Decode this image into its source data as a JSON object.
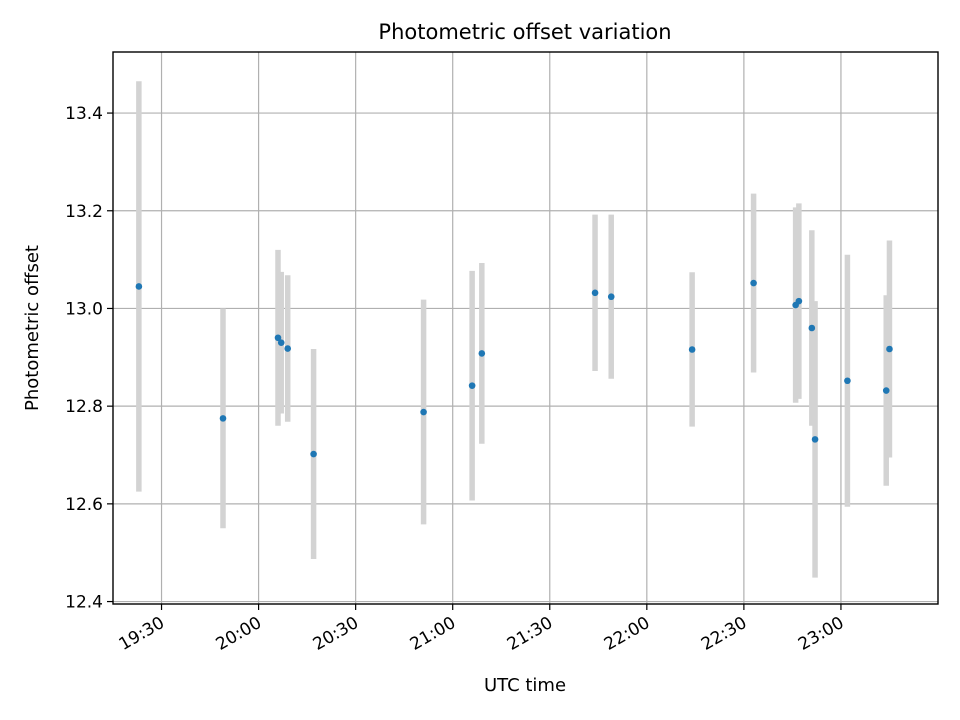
{
  "chart_data": {
    "type": "scatter",
    "title": "Photometric offset variation",
    "xlabel": "UTC time",
    "ylabel": "Photometric offset",
    "x_is_time": true,
    "xlim": [
      "19:15",
      "23:30"
    ],
    "ylim": [
      12.395,
      13.525
    ],
    "x_ticks": [
      "19:30",
      "20:00",
      "20:30",
      "21:00",
      "21:30",
      "22:00",
      "22:30",
      "23:00"
    ],
    "y_ticks": [
      12.4,
      12.6,
      12.8,
      13.0,
      13.2,
      13.4
    ],
    "y_tick_labels": [
      "12.4",
      "12.6",
      "12.8",
      "13.0",
      "13.2",
      "13.4"
    ],
    "grid": true,
    "marker_color": "#1f77b4",
    "errorbar_color": "#d3d3d3",
    "series": [
      {
        "points": [
          {
            "x": "19:23",
            "y": 13.045,
            "err": 0.42
          },
          {
            "x": "19:49",
            "y": 12.775,
            "err": 0.225
          },
          {
            "x": "20:06",
            "y": 12.94,
            "err": 0.18
          },
          {
            "x": "20:07",
            "y": 12.93,
            "err": 0.145
          },
          {
            "x": "20:09",
            "y": 12.918,
            "err": 0.15
          },
          {
            "x": "20:17",
            "y": 12.702,
            "err": 0.215
          },
          {
            "x": "20:51",
            "y": 12.788,
            "err": 0.23
          },
          {
            "x": "21:06",
            "y": 12.842,
            "err": 0.235
          },
          {
            "x": "21:09",
            "y": 12.908,
            "err": 0.185
          },
          {
            "x": "21:44",
            "y": 13.032,
            "err": 0.16
          },
          {
            "x": "21:49",
            "y": 13.024,
            "err": 0.168
          },
          {
            "x": "22:14",
            "y": 12.916,
            "err": 0.158
          },
          {
            "x": "22:33",
            "y": 13.052,
            "err": 0.183
          },
          {
            "x": "22:46",
            "y": 13.007,
            "err": 0.2
          },
          {
            "x": "22:47",
            "y": 13.015,
            "err": 0.2
          },
          {
            "x": "22:51",
            "y": 12.96,
            "err": 0.2
          },
          {
            "x": "22:52",
            "y": 12.732,
            "err": 0.283
          },
          {
            "x": "23:02",
            "y": 12.852,
            "err": 0.258
          },
          {
            "x": "23:14",
            "y": 12.832,
            "err": 0.195
          },
          {
            "x": "23:15",
            "y": 12.917,
            "err": 0.222
          }
        ]
      }
    ]
  }
}
